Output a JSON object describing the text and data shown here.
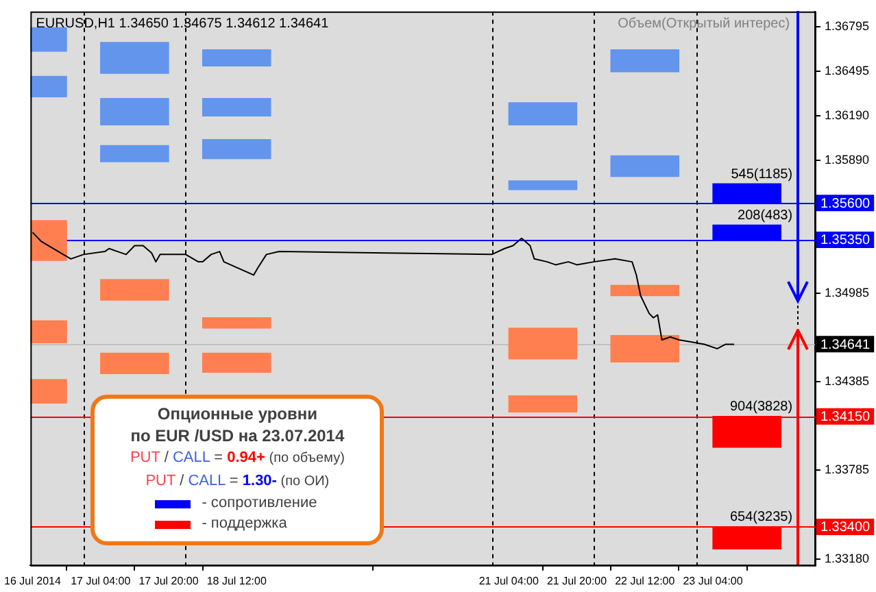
{
  "chart_data": {
    "type": "line",
    "title": "EURUSD,H1 1.34650 1.34675 1.34612 1.34641",
    "subtitle": "Объем(Открытый интерес)",
    "annotations": [
      "Опционные уровни",
      "по EUR /USD на 23.07.2014",
      "PUT / CALL = 0.94+ (по объему)",
      "PUT / CALL = 1.30- (по ОИ)",
      {
        "text": "545(1185)",
        "x": "2014-07-23T12:00",
        "y": 1.3573
      },
      {
        "text": "208(483)",
        "x": "2014-07-23T12:00",
        "y": 1.3545
      },
      {
        "text": "904(3828)",
        "x": "2014-07-23T12:00",
        "y": 1.3415
      },
      {
        "text": "654(3235)",
        "x": "2014-07-23T12:00",
        "y": 1.334
      }
    ],
    "xlim": [
      "2014-07-16T11:30",
      "2014-07-24T04:00"
    ],
    "xticks": [
      {
        "value": "2014-07-16T12:00",
        "label": "16 Jul 2014"
      },
      {
        "value": "2014-07-17T04:00",
        "label": "17 Jul 04:00"
      },
      {
        "value": "2014-07-17T20:00",
        "label": "17 Jul 20:00"
      },
      {
        "value": "2014-07-18T12:00",
        "label": "18 Jul 12:00"
      },
      {
        "value": "2014-07-21T04:00",
        "label": "21 Jul 04:00"
      },
      {
        "value": "2014-07-21T20:00",
        "label": "21 Jul 20:00"
      },
      {
        "value": "2014-07-22T12:00",
        "label": "22 Jul 12:00"
      },
      {
        "value": "2014-07-23T04:00",
        "label": "23 Jul 04:00"
      }
    ],
    "ylim": [
      1.3314,
      1.369
    ],
    "yticks": [
      1.36795,
      1.36495,
      {
        "value": 1.3619,
        "label": "1.36190"
      },
      {
        "value": 1.3589,
        "label": "1.35890"
      },
      1.34985,
      1.34385,
      1.33785,
      {
        "value": 1.3318,
        "label": "1.33180"
      }
    ],
    "legend": "bottom left",
    "ref_lines": [
      {
        "axis": "x",
        "value": "2014-07-17T00:00",
        "color": "#000000",
        "line_style": "dashed"
      },
      {
        "axis": "x",
        "value": "2014-07-18T00:00",
        "color": "#000000",
        "line_style": "dashed"
      },
      {
        "axis": "x",
        "value": "2014-07-21T00:00",
        "color": "#000000",
        "line_style": "dashed"
      },
      {
        "axis": "x",
        "value": "2014-07-22T00:00",
        "color": "#000000",
        "line_style": "dashed"
      },
      {
        "axis": "x",
        "value": "2014-07-23T00:00",
        "color": "#000000",
        "line_style": "dashed"
      },
      {
        "axis": "y",
        "value": 1.34641,
        "label": "1.34641",
        "color": "#c0c0c0"
      },
      {
        "axis": "y",
        "value": 1.356,
        "label": "1.35600",
        "color": "#0000ff"
      },
      {
        "axis": "y",
        "value": 1.3535,
        "label": "1.35350",
        "color": "#0000ff"
      },
      {
        "axis": "y",
        "value": 1.3415,
        "label": "1.34150",
        "color": "#ff0000"
      },
      {
        "axis": "y",
        "value": 1.334,
        "label": "1.33400",
        "color": "#ff0000"
      }
    ],
    "series": [
      {
        "type": "bar",
        "color": "#6495ed",
        "x": [
          "2014-07-16T12:00",
          "2014-07-17T12:00",
          "2014-07-18T12:00",
          "2014-07-21T12:00",
          "2014-07-22T12:00"
        ],
        "base": [
          1.3663,
          1.3648,
          1.3653,
          1.3613,
          1.3649
        ],
        "values": [
          0.0016,
          0.0021,
          0.0011,
          0.0015,
          0.0015
        ]
      },
      {
        "type": "bar",
        "color": "#6495ed",
        "x": [
          "2014-07-16T12:00",
          "2014-07-17T12:00",
          "2014-07-18T12:00",
          "2014-07-21T12:00",
          "2014-07-22T12:00"
        ],
        "base": [
          1.3632,
          1.3613,
          1.3619,
          1.3569,
          1.3578
        ],
        "values": [
          0.0014,
          0.0018,
          0.0012,
          0.0006,
          0.0014
        ]
      },
      {
        "type": "bar",
        "color": "#6495ed",
        "x": [
          "2014-07-17T12:00",
          "2014-07-18T12:00"
        ],
        "base": [
          1.3588,
          1.359
        ],
        "values": [
          0.0011,
          0.0013
        ]
      },
      {
        "type": "bar",
        "color": "#ff7f50",
        "x": [
          "2014-07-16T12:00",
          "2014-07-17T12:00",
          "2014-07-18T12:00",
          "2014-07-21T12:00",
          "2014-07-22T12:00"
        ],
        "base": [
          1.3521,
          1.3494,
          1.3475,
          1.3454,
          1.3497
        ],
        "values": [
          0.0027,
          0.0014,
          0.0007,
          0.0021,
          0.0007
        ]
      },
      {
        "type": "bar",
        "color": "#ff7f50",
        "x": [
          "2014-07-16T12:00",
          "2014-07-17T12:00",
          "2014-07-18T12:00",
          "2014-07-21T12:00",
          "2014-07-22T12:00"
        ],
        "base": [
          1.3465,
          1.3444,
          1.3445,
          1.3418,
          1.3452
        ],
        "values": [
          0.0015,
          0.0014,
          0.0013,
          0.0011,
          0.0018
        ]
      },
      {
        "type": "bar",
        "color": "#ff7f50",
        "x": [
          "2014-07-16T12:00"
        ],
        "base": [
          1.3424
        ],
        "values": [
          0.0016
        ]
      },
      {
        "type": "bar",
        "name": "- сопротивление",
        "color": "#0000ff",
        "x": [
          "2014-07-23T12:00"
        ],
        "base": [
          1.356
        ],
        "values": [
          0.0013
        ]
      },
      {
        "type": "bar",
        "color": "#0000ff",
        "x": [
          "2014-07-23T12:00"
        ],
        "base": [
          1.3535
        ],
        "values": [
          0.001
        ]
      },
      {
        "type": "bar",
        "name": "- поддержка",
        "color": "#ff0000",
        "x": [
          "2014-07-23T12:00"
        ],
        "base": [
          1.3394
        ],
        "values": [
          0.0021
        ]
      },
      {
        "type": "bar",
        "color": "#ff0000",
        "x": [
          "2014-07-23T12:00"
        ],
        "base": [
          1.3325
        ],
        "values": [
          0.0015
        ]
      },
      {
        "color": "#000000",
        "x": [
          "2014-07-16T12:00",
          "2014-07-16T14:00",
          "2014-07-16T21:00",
          "2014-07-17T00:00",
          "2014-07-17T05:00",
          "2014-07-17T06:00",
          "2014-07-17T08:00",
          "2014-07-17T10:00",
          "2014-07-17T12:00",
          "2014-07-17T14:00",
          "2014-07-17T16:00",
          "2014-07-17T17:00",
          "2014-07-17T18:00",
          "2014-07-17T22:00",
          "2014-07-18T00:00",
          "2014-07-18T03:00",
          "2014-07-18T04:00",
          "2014-07-18T06:00",
          "2014-07-18T08:00",
          "2014-07-18T09:00",
          "2014-07-18T16:00",
          "2014-07-18T17:00",
          "2014-07-18T19:00",
          "2014-07-18T22:00",
          "2014-07-21T00:00",
          "2014-07-21T03:00",
          "2014-07-21T05:00",
          "2014-07-21T07:00",
          "2014-07-21T09:00",
          "2014-07-21T10:00",
          "2014-07-21T13:00",
          "2014-07-21T15:00",
          "2014-07-21T18:00",
          "2014-07-21T20:00",
          "2014-07-22T00:00",
          "2014-07-22T05:00",
          "2014-07-22T09:00",
          "2014-07-22T10:00",
          "2014-07-22T11:00",
          "2014-07-22T13:00",
          "2014-07-22T14:00",
          "2014-07-22T15:00",
          "2014-07-22T16:00",
          "2014-07-22T18:00",
          "2014-07-22T20:00",
          "2014-07-23T00:00",
          "2014-07-23T02:00",
          "2014-07-23T05:00",
          "2014-07-23T07:00",
          "2014-07-23T09:00"
        ],
        "values": [
          1.354,
          1.3534,
          1.3522,
          1.3525,
          1.3527,
          1.3529,
          1.3527,
          1.3525,
          1.3531,
          1.3531,
          1.3526,
          1.352,
          1.3525,
          1.3525,
          1.3525,
          1.352,
          1.352,
          1.3525,
          1.3527,
          1.352,
          1.3511,
          1.3516,
          1.3525,
          1.3527,
          1.3525,
          1.3529,
          1.3531,
          1.3536,
          1.3531,
          1.3522,
          1.352,
          1.3518,
          1.352,
          1.3518,
          1.352,
          1.3522,
          1.352,
          1.3511,
          1.3497,
          1.3485,
          1.3482,
          1.3484,
          1.3467,
          1.3469,
          1.3467,
          1.3465,
          1.3464,
          1.3461,
          1.3464,
          1.3464
        ]
      }
    ]
  }
}
